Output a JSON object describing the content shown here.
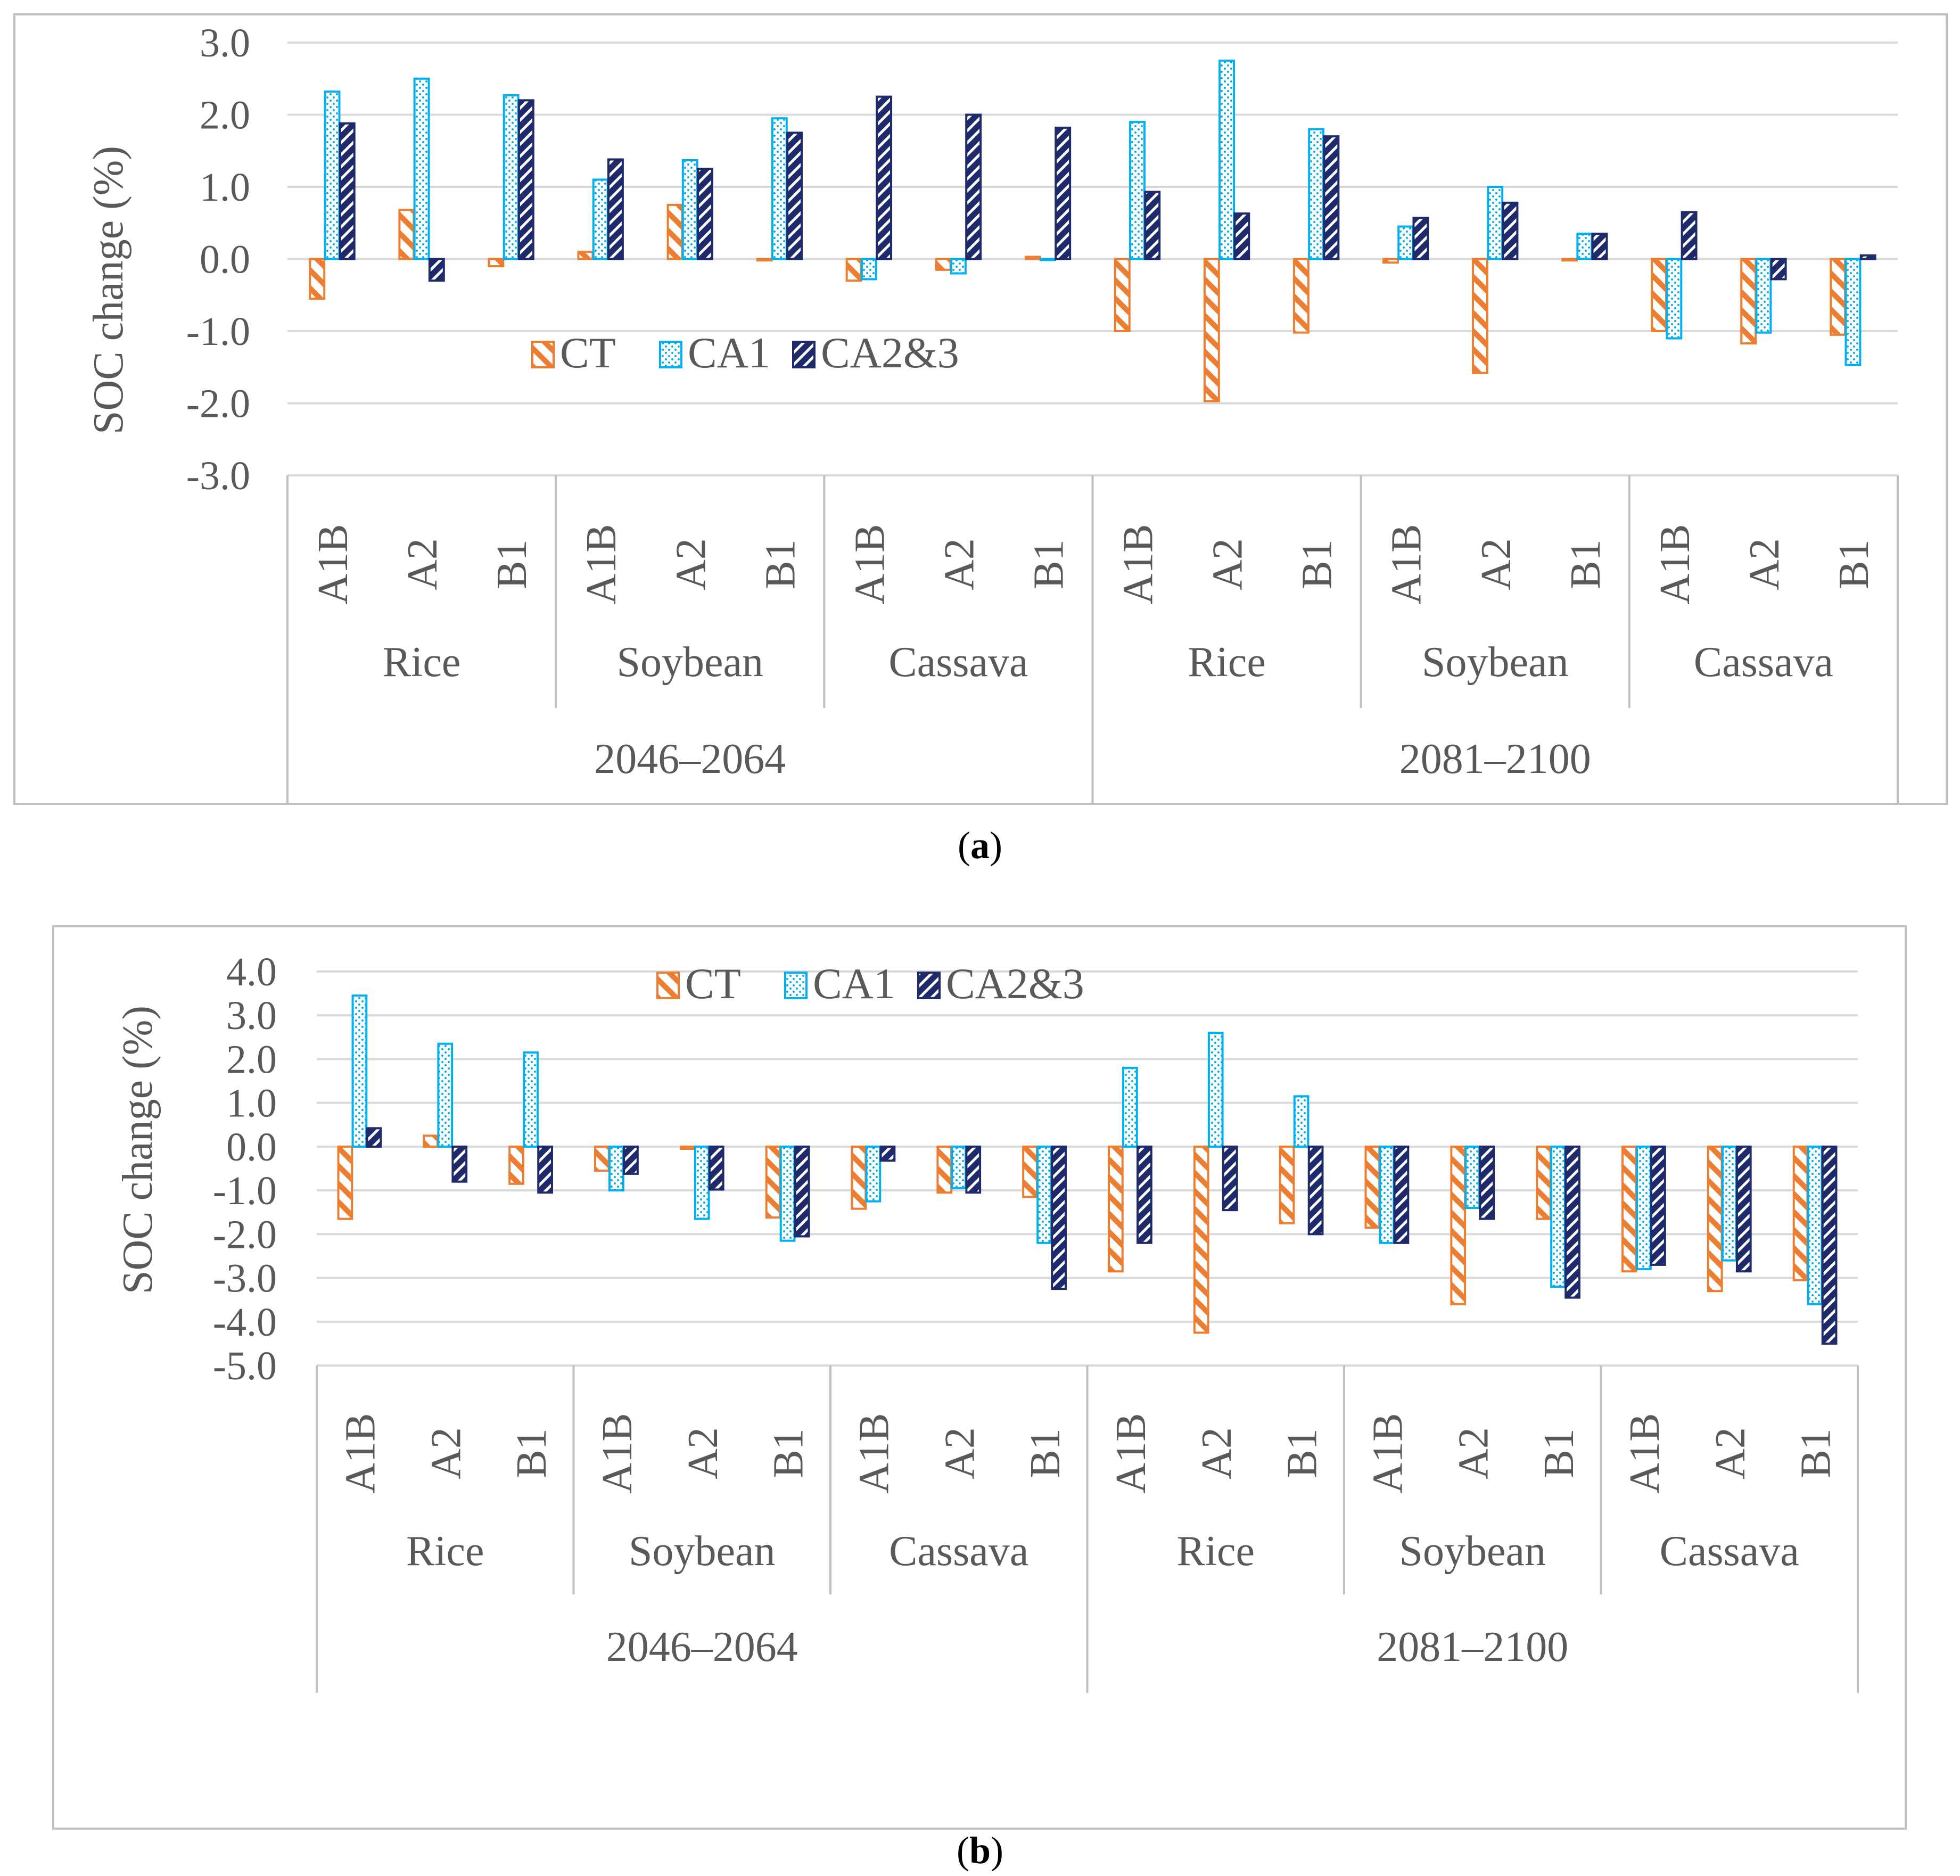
{
  "chart_data": [
    {
      "type": "bar",
      "panel": "a",
      "ylabel": "SOC change (%)",
      "ylim": [
        -3.0,
        3.0
      ],
      "yticks": [
        "3.0",
        "2.0",
        "1.0",
        "0.0",
        "-1.0",
        "-2.0",
        "-3.0"
      ],
      "grid": true,
      "legend_position": "lower-center inside plot",
      "categories": [
        "A1B",
        "A2",
        "B1",
        "A1B",
        "A2",
        "B1",
        "A1B",
        "A2",
        "B1",
        "A1B",
        "A2",
        "B1",
        "A1B",
        "A2",
        "B1",
        "A1B",
        "A2",
        "B1"
      ],
      "crops": [
        "Rice",
        "Soybean",
        "Cassava",
        "Rice",
        "Soybean",
        "Cassava"
      ],
      "periods": [
        "2046–2064",
        "2081–2100"
      ],
      "series": [
        {
          "name": "CT",
          "values": [
            -0.55,
            0.68,
            -0.1,
            0.1,
            0.75,
            -0.02,
            -0.3,
            -0.15,
            0.03,
            -1.0,
            -1.97,
            -1.02,
            -0.05,
            -1.58,
            -0.02,
            -1.0,
            -1.17,
            -1.05
          ]
        },
        {
          "name": "CA1",
          "values": [
            2.32,
            2.5,
            2.27,
            1.1,
            1.37,
            1.95,
            -0.28,
            -0.2,
            0.0,
            1.9,
            2.75,
            1.8,
            0.45,
            1.0,
            0.35,
            -1.1,
            -1.02,
            -1.47
          ]
        },
        {
          "name": "CA2&3",
          "values": [
            1.88,
            -0.3,
            2.2,
            1.38,
            1.25,
            1.75,
            2.25,
            2.0,
            1.82,
            0.93,
            0.63,
            1.7,
            0.57,
            0.78,
            0.35,
            0.65,
            -0.28,
            0.05
          ]
        }
      ]
    },
    {
      "type": "bar",
      "panel": "b",
      "ylabel": "SOC change (%)",
      "ylim": [
        -5.0,
        4.0
      ],
      "yticks": [
        "4.0",
        "3.0",
        "2.0",
        "1.0",
        "0.0",
        "-1.0",
        "-2.0",
        "-3.0",
        "-4.0",
        "-5.0"
      ],
      "grid": true,
      "legend_position": "top-center inside plot",
      "categories": [
        "A1B",
        "A2",
        "B1",
        "A1B",
        "A2",
        "B1",
        "A1B",
        "A2",
        "B1",
        "A1B",
        "A2",
        "B1",
        "A1B",
        "A2",
        "B1",
        "A1B",
        "A2",
        "B1"
      ],
      "crops": [
        "Rice",
        "Soybean",
        "Cassava",
        "Rice",
        "Soybean",
        "Cassava"
      ],
      "periods": [
        "2046–2064",
        "2081–2100"
      ],
      "series": [
        {
          "name": "CT",
          "values": [
            -1.65,
            0.25,
            -0.85,
            -0.55,
            -0.05,
            -1.62,
            -1.42,
            -1.05,
            -1.15,
            -2.85,
            -4.25,
            -1.75,
            -1.85,
            -3.6,
            -1.65,
            -2.85,
            -3.3,
            -3.05
          ]
        },
        {
          "name": "CA1",
          "values": [
            3.45,
            2.35,
            2.15,
            -1.0,
            -1.65,
            -2.15,
            -1.25,
            -0.95,
            -2.2,
            1.8,
            2.6,
            1.15,
            -2.2,
            -1.4,
            -3.2,
            -2.8,
            -2.6,
            -3.6
          ]
        },
        {
          "name": "CA2&3",
          "values": [
            0.42,
            -0.8,
            -1.05,
            -0.62,
            -0.98,
            -2.05,
            -0.32,
            -1.05,
            -3.25,
            -2.2,
            -1.45,
            -2.0,
            -2.2,
            -1.65,
            -3.45,
            -2.7,
            -2.85,
            -4.5
          ]
        }
      ]
    }
  ],
  "captions": [
    "a",
    "b"
  ],
  "colors": {
    "CT": "#ED7D31",
    "CA1": "#00B0F0",
    "CA2&3": "#1F2A6B",
    "grid": "#D9D9D9",
    "frame": "#BFBFBF",
    "text": "#595959"
  }
}
